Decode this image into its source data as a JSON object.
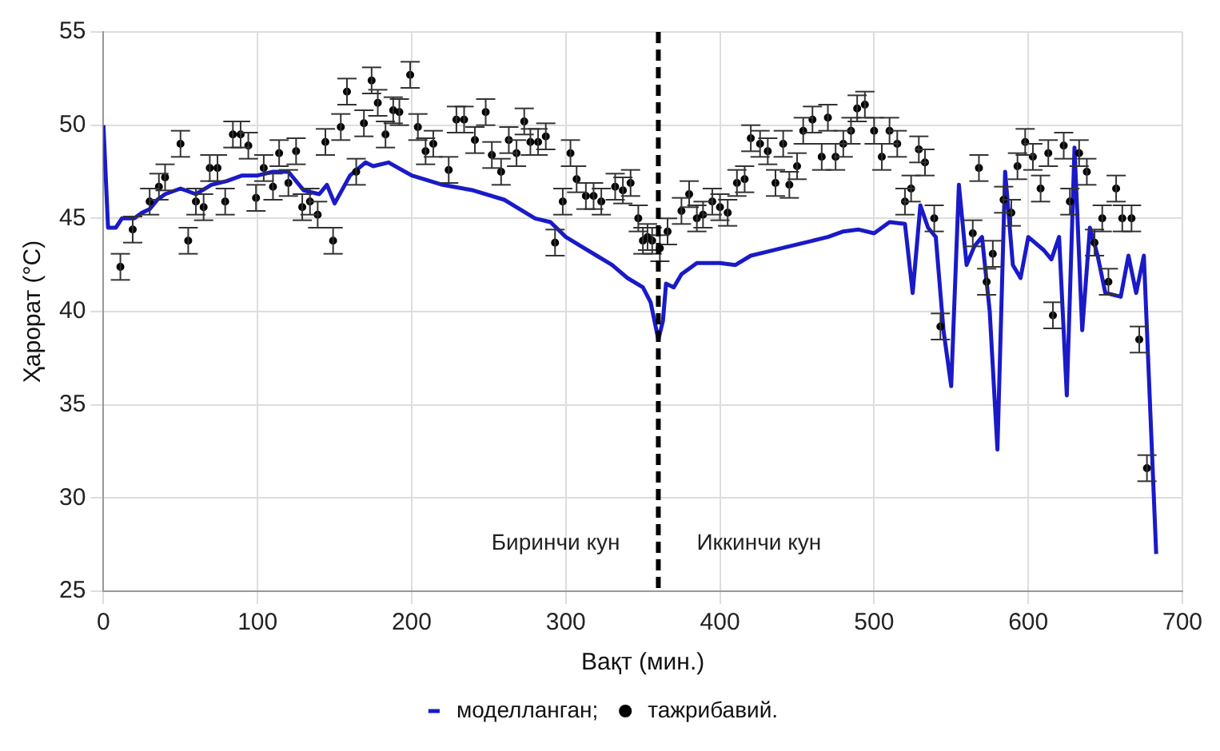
{
  "chart_data": {
    "type": "line",
    "xlabel": "Вақт (мин.)",
    "ylabel": "Ҳарорат (°C)",
    "xlim": [
      0,
      700
    ],
    "xticks": [
      0,
      100,
      200,
      300,
      400,
      500,
      600,
      700
    ],
    "ylim": [
      25,
      55
    ],
    "yticks": [
      25,
      30,
      35,
      40,
      45,
      50,
      55
    ],
    "grid": true,
    "legend": "bottom",
    "annotations": [
      "Биринчи кун",
      "Иккинчи кун"
    ],
    "ref_lines": [
      {
        "axis": "x",
        "value": 360,
        "color": "#000000",
        "line_style": "dashed"
      }
    ],
    "series": [
      {
        "name": "моделланган;",
        "type": "line",
        "color": "#1a1ac8",
        "marker": "none",
        "line_style": "solid",
        "x": [
          0,
          3,
          8,
          12,
          20,
          25,
          30,
          35,
          40,
          50,
          60,
          70,
          80,
          90,
          100,
          110,
          120,
          130,
          140,
          145,
          150,
          160,
          170,
          175,
          185,
          200,
          220,
          240,
          260,
          280,
          290,
          300,
          310,
          320,
          330,
          340,
          350,
          355,
          360,
          363,
          365,
          370,
          375,
          385,
          400,
          410,
          420,
          430,
          440,
          460,
          470,
          480,
          490,
          500,
          510,
          520,
          525,
          530,
          535,
          540,
          545,
          550,
          555,
          560,
          565,
          570,
          575,
          580,
          585,
          590,
          595,
          600,
          610,
          615,
          620,
          625,
          630,
          635,
          640,
          645,
          650,
          660,
          665,
          670,
          675,
          683
        ],
        "values": [
          50,
          44.5,
          44.5,
          45,
          45,
          45.3,
          45.5,
          46,
          46.3,
          46.6,
          46.3,
          46.8,
          47,
          47.3,
          47.3,
          47.5,
          47.5,
          46.5,
          46.3,
          46.8,
          45.8,
          47.3,
          48,
          47.8,
          48,
          47.3,
          46.8,
          46.5,
          46,
          45,
          44.8,
          44,
          43.5,
          43,
          42.5,
          41.8,
          41.3,
          40.5,
          38.5,
          39.5,
          41.5,
          41.3,
          42,
          42.6,
          42.6,
          42.5,
          43,
          43.2,
          43.4,
          43.8,
          44,
          44.3,
          44.4,
          44.2,
          44.8,
          44.7,
          41,
          45.7,
          44.5,
          44,
          39,
          36,
          46.8,
          42.5,
          43.5,
          44,
          40,
          32.6,
          47.5,
          42.5,
          41.8,
          44,
          43.3,
          42.8,
          44,
          35.5,
          48.8,
          39,
          44.5,
          43,
          41,
          40.8,
          43,
          41,
          43,
          27
        ]
      },
      {
        "name": "тажрибавий.",
        "type": "scatter",
        "color": "#000000",
        "marker": "circle",
        "x": [
          11,
          19,
          30,
          36,
          40,
          50,
          55,
          60,
          65,
          69,
          74,
          79,
          84,
          89,
          94,
          99,
          104,
          110,
          114,
          120,
          125,
          129,
          134,
          139,
          144,
          149,
          154,
          158,
          164,
          169,
          174,
          178,
          183,
          188,
          192,
          199,
          204,
          209,
          214,
          224,
          229,
          234,
          241,
          248,
          252,
          258,
          263,
          268,
          273,
          277,
          282,
          287,
          293,
          298,
          303,
          307,
          313,
          318,
          323,
          332,
          337,
          342,
          347,
          350,
          353,
          356,
          361,
          366,
          375,
          380,
          385,
          389,
          395,
          400,
          405,
          411,
          416,
          420,
          426,
          431,
          436,
          441,
          445,
          450,
          454,
          460,
          466,
          470,
          475,
          480,
          485,
          489,
          494,
          500,
          505,
          510,
          515,
          520,
          524,
          529,
          533,
          539,
          543,
          564,
          568,
          573,
          577,
          584,
          589,
          593,
          598,
          603,
          608,
          613,
          616,
          623,
          627,
          633,
          638,
          643,
          648,
          652,
          657,
          661,
          667,
          672,
          677
        ],
        "values": [
          42.4,
          44.4,
          45.9,
          46.7,
          47.2,
          49,
          43.8,
          45.9,
          45.6,
          47.7,
          47.7,
          45.9,
          49.5,
          49.5,
          48.9,
          46.1,
          47.7,
          46.7,
          48.5,
          46.9,
          48.6,
          45.6,
          45.9,
          45.2,
          49.1,
          43.8,
          49.9,
          51.8,
          47.5,
          50.1,
          52.4,
          51.2,
          49.5,
          50.8,
          50.7,
          52.7,
          49.9,
          48.6,
          49,
          47.6,
          50.3,
          50.3,
          49.2,
          50.7,
          48.4,
          47.5,
          49.2,
          48.5,
          50.2,
          49.1,
          49.1,
          49.4,
          43.7,
          45.9,
          48.5,
          47.1,
          46.2,
          46.2,
          45.9,
          46.7,
          46.5,
          46.9,
          45,
          43.8,
          44,
          43.8,
          43.4,
          44.3,
          45.4,
          46.3,
          45,
          45.2,
          45.9,
          45.6,
          45.3,
          46.9,
          47.1,
          49.3,
          49,
          48.6,
          46.9,
          49,
          46.8,
          47.8,
          49.7,
          50.3,
          48.3,
          50.4,
          48.3,
          49,
          49.7,
          50.9,
          51.1,
          49.7,
          48.3,
          49.7,
          49,
          45.9,
          46.6,
          48.7,
          48,
          45,
          39.2,
          44.2,
          47.7,
          41.6,
          43.1,
          46,
          45.3,
          47.8,
          49.1,
          48.3,
          46.6,
          48.5,
          39.8,
          48.9,
          45.9,
          48.5,
          47.5,
          43.7,
          45,
          41.6,
          46.6,
          45,
          45,
          38.5,
          31.6
        ],
        "errors": [
          0.7,
          0.7,
          0.7,
          0.7,
          0.7,
          0.7,
          0.7,
          0.7,
          0.7,
          0.7,
          0.7,
          0.7,
          0.7,
          0.7,
          0.7,
          0.7,
          0.7,
          0.7,
          0.7,
          0.7,
          0.7,
          0.7,
          0.7,
          0.7,
          0.7,
          0.7,
          0.7,
          0.7,
          0.7,
          0.7,
          0.7,
          0.7,
          0.7,
          0.7,
          0.7,
          0.7,
          0.7,
          0.7,
          0.7,
          0.7,
          0.7,
          0.7,
          0.7,
          0.7,
          0.7,
          0.7,
          0.7,
          0.7,
          0.7,
          0.7,
          0.7,
          0.7,
          0.7,
          0.7,
          0.7,
          0.7,
          0.7,
          0.7,
          0.7,
          0.7,
          0.7,
          0.7,
          0.7,
          0.7,
          0.7,
          0.7,
          0.7,
          0.7,
          0.7,
          0.7,
          0.7,
          0.7,
          0.7,
          0.7,
          0.7,
          0.7,
          0.7,
          0.7,
          0.7,
          0.7,
          0.7,
          0.7,
          0.7,
          0.7,
          0.7,
          0.7,
          0.7,
          0.7,
          0.7,
          0.7,
          0.7,
          0.7,
          0.7,
          0.7,
          0.7,
          0.7,
          0.7,
          0.7,
          0.7,
          0.7,
          0.7,
          0.7,
          0.7,
          0.7,
          0.7,
          0.7,
          0.7,
          0.7,
          0.7,
          0.7,
          0.7,
          0.7,
          0.7,
          0.7,
          0.7,
          0.7,
          0.7,
          0.7,
          0.7,
          0.7,
          0.7,
          0.7,
          0.7,
          0.7,
          0.7,
          0.7,
          0.7
        ]
      }
    ]
  }
}
